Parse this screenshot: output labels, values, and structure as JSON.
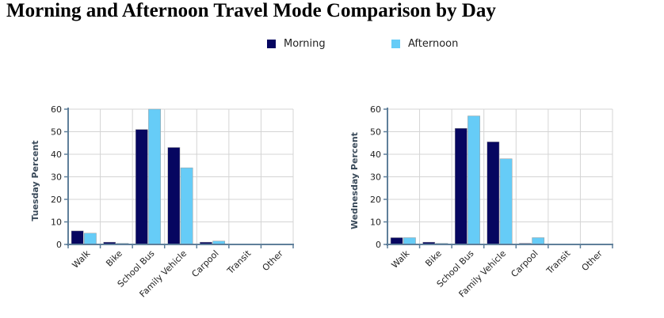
{
  "title": "Morning and Afternoon Travel Mode Comparison by Day",
  "colors": {
    "morning": "#060660",
    "afternoon": "#66ccf7",
    "axis": "#5f7f9a",
    "grid": "#d4d4d4"
  },
  "legend": [
    {
      "name": "Morning",
      "color": "#060660"
    },
    {
      "name": "Afternoon",
      "color": "#66ccf7"
    }
  ],
  "chart_data": [
    {
      "type": "bar",
      "categories": [
        "Walk",
        "Bike",
        "School Bus",
        "Family Vehicle",
        "Carpool",
        "Transit",
        "Other"
      ],
      "ylabel": "Tuesday Percent",
      "xlabel": "",
      "ylim": [
        0,
        60
      ],
      "yticks": [
        0,
        10,
        20,
        30,
        40,
        50,
        60
      ],
      "grid": true,
      "legend_position": "top-center",
      "series": [
        {
          "name": "Morning",
          "values": [
            6,
            1,
            51,
            43,
            1,
            0,
            0
          ]
        },
        {
          "name": "Afternoon",
          "values": [
            5,
            0.5,
            60,
            34,
            1.5,
            0,
            0
          ]
        }
      ]
    },
    {
      "type": "bar",
      "categories": [
        "Walk",
        "Bike",
        "School Bus",
        "Family Vehicle",
        "Carpool",
        "Transit",
        "Other"
      ],
      "ylabel": "Wednesday Percent",
      "xlabel": "",
      "ylim": [
        0,
        60
      ],
      "yticks": [
        0,
        10,
        20,
        30,
        40,
        50,
        60
      ],
      "grid": true,
      "legend_position": "top-center",
      "series": [
        {
          "name": "Morning",
          "values": [
            3,
            1,
            51.5,
            45.5,
            0.5,
            0,
            0
          ]
        },
        {
          "name": "Afternoon",
          "values": [
            3,
            0.5,
            57,
            38,
            3,
            0,
            0
          ]
        }
      ]
    }
  ]
}
